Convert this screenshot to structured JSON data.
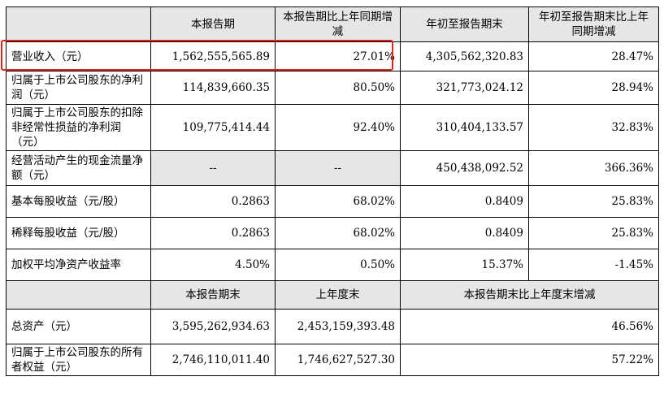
{
  "header": {
    "col1": "本报告期",
    "col2": "本报告期比上年同期增减",
    "col3": "年初至报告期末",
    "col4": "年初至报告期末比上年同期增减"
  },
  "rows": [
    {
      "label": "营业收入（元）",
      "v1": "1,562,555,565.89",
      "v2": "27.01%",
      "v3": "4,305,562,320.83",
      "v4": "28.47%"
    },
    {
      "label": "归属于上市公司股东的净利润（元）",
      "v1": "114,839,660.35",
      "v2": "80.50%",
      "v3": "321,773,024.12",
      "v4": "28.94%"
    },
    {
      "label": "归属于上市公司股东的扣除非经常性损益的净利润（元）",
      "v1": "109,775,414.44",
      "v2": "92.40%",
      "v3": "310,404,133.57",
      "v4": "32.83%"
    },
    {
      "label": "经营活动产生的现金流量净额（元）",
      "v1": "--",
      "v2": "--",
      "v3": "450,438,092.52",
      "v4": "366.36%"
    },
    {
      "label": "基本每股收益（元/股）",
      "v1": "0.2863",
      "v2": "68.02%",
      "v3": "0.8409",
      "v4": "25.83%"
    },
    {
      "label": "稀释每股收益（元/股）",
      "v1": "0.2863",
      "v2": "68.02%",
      "v3": "0.8409",
      "v4": "25.83%"
    },
    {
      "label": "加权平均净资产收益率",
      "v1": "4.50%",
      "v2": "0.50%",
      "v3": "15.37%",
      "v4": "-1.45%"
    }
  ],
  "header2": {
    "col1": "本报告期末",
    "col2": "上年度末",
    "col3": "本报告期末比上年度末增减"
  },
  "rows2": [
    {
      "label": "总资产（元）",
      "v1": "3,595,262,934.63",
      "v2": "2,453,159,393.48",
      "v3": "46.56%"
    },
    {
      "label": "归属于上市公司股东的所有者权益（元）",
      "v1": "2,746,110,011.40",
      "v2": "1,746,627,527.30",
      "v3": "57.22%"
    }
  ],
  "highlight_color": "#e0221c"
}
